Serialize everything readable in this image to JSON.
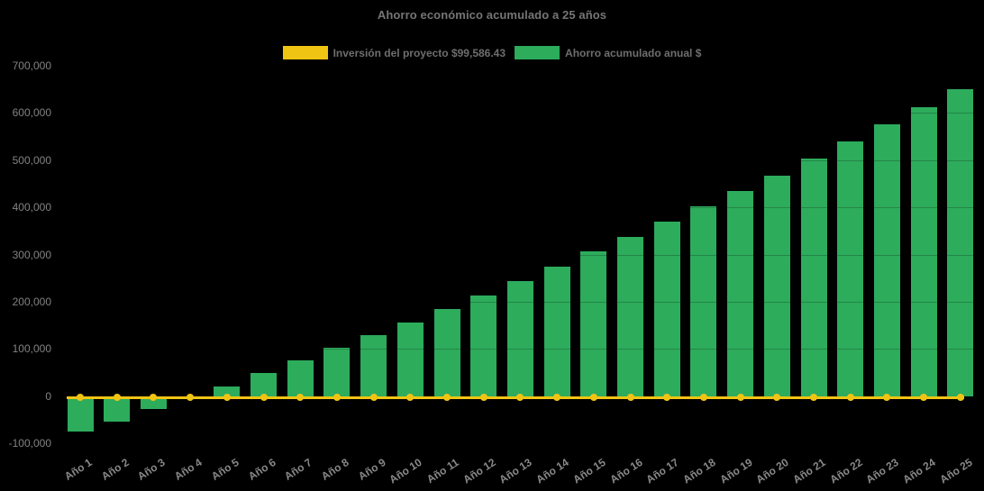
{
  "chart_data": {
    "type": "bar",
    "title": "Ahorro económico acumulado a 25 años",
    "categories": [
      "Año 1",
      "Año 2",
      "Año 3",
      "Año 4",
      "Año 5",
      "Año 6",
      "Año 7",
      "Año 8",
      "Año 9",
      "Año 10",
      "Año 11",
      "Año 12",
      "Año 13",
      "Año 14",
      "Año 15",
      "Año 16",
      "Año 17",
      "Año 18",
      "Año 19",
      "Año 20",
      "Año 21",
      "Año 22",
      "Año 23",
      "Año 24",
      "Año 25"
    ],
    "series": [
      {
        "name": "Inversión del proyecto $99,586.43",
        "type": "line",
        "color": "#F0C413",
        "values": [
          0,
          0,
          0,
          0,
          0,
          0,
          0,
          0,
          0,
          0,
          0,
          0,
          0,
          0,
          0,
          0,
          0,
          0,
          0,
          0,
          0,
          0,
          0,
          0,
          0
        ]
      },
      {
        "name": "Ahorro acumulado anual $",
        "type": "bar",
        "color": "#2DAC5C",
        "values": [
          -76000,
          -54000,
          -28000,
          -4000,
          21000,
          48000,
          75000,
          102000,
          130000,
          156000,
          184000,
          214000,
          244000,
          274000,
          306000,
          337000,
          370000,
          402000,
          434000,
          468000,
          504000,
          540000,
          576000,
          612000,
          650000
        ]
      }
    ],
    "ylim": [
      -100000,
      700000
    ],
    "yticks": [
      700000,
      600000,
      500000,
      400000,
      300000,
      200000,
      100000,
      0,
      -100000
    ],
    "grid": "off",
    "legend_position": "top",
    "background_color": "#000000",
    "text_color": "#828282",
    "title_color": "#757575"
  }
}
